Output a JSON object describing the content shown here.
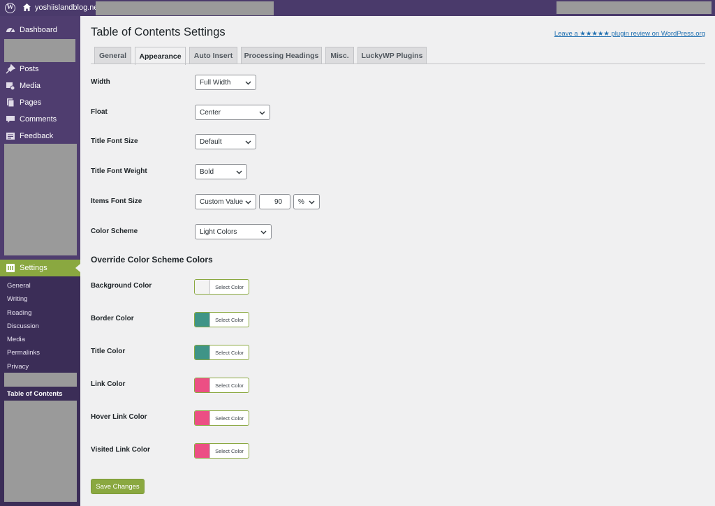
{
  "adminbar": {
    "logo": "W",
    "site_name": "yoshiislandblog.net"
  },
  "sidebar": {
    "items": [
      {
        "label": "Dashboard",
        "icon": "dashboard-icon"
      },
      {
        "label": "Posts",
        "icon": "pin-icon"
      },
      {
        "label": "Media",
        "icon": "media-icon"
      },
      {
        "label": "Pages",
        "icon": "pages-icon"
      },
      {
        "label": "Comments",
        "icon": "comment-icon"
      },
      {
        "label": "Feedback",
        "icon": "feedback-icon"
      }
    ],
    "settings_label": "Settings",
    "submenu": [
      "General",
      "Writing",
      "Reading",
      "Discussion",
      "Media",
      "Permalinks",
      "Privacy"
    ],
    "current_submenu": "Table of Contents"
  },
  "main": {
    "title": "Table of Contents Settings",
    "review_link": "Leave a ★★★★★ plugin review on WordPress.org",
    "tabs": [
      "General",
      "Appearance",
      "Auto Insert",
      "Processing Headings",
      "Misc.",
      "LuckyWP Plugins"
    ],
    "active_tab": "Appearance",
    "fields": {
      "width": {
        "label": "Width",
        "value": "Full Width"
      },
      "float": {
        "label": "Float",
        "value": "Center"
      },
      "title_font_size": {
        "label": "Title Font Size",
        "value": "Default"
      },
      "title_font_weight": {
        "label": "Title Font Weight",
        "value": "Bold"
      },
      "items_font_size": {
        "label": "Items Font Size",
        "value": "Custom Value",
        "number": "90",
        "unit": "%"
      },
      "color_scheme": {
        "label": "Color Scheme",
        "value": "Light Colors"
      }
    },
    "override_heading": "Override Color Scheme Colors",
    "colors": [
      {
        "label": "Background Color",
        "button": "Select Color",
        "swatch": "#f3f3f3"
      },
      {
        "label": "Border Color",
        "button": "Select Color",
        "swatch": "#3f9487"
      },
      {
        "label": "Title Color",
        "button": "Select Color",
        "swatch": "#3f9487"
      },
      {
        "label": "Link Color",
        "button": "Select Color",
        "swatch": "#ec4f84"
      },
      {
        "label": "Hover Link Color",
        "button": "Select Color",
        "swatch": "#ec4f84"
      },
      {
        "label": "Visited Link Color",
        "button": "Select Color",
        "swatch": "#ec4f84"
      }
    ],
    "save_label": "Save Changes"
  },
  "theme": {
    "admin_bar": "#4a3a6b",
    "sidebar": "#4f3d6f",
    "submenu": "#3b2d57",
    "accent": "#8aa840",
    "link": "#2271b1"
  }
}
